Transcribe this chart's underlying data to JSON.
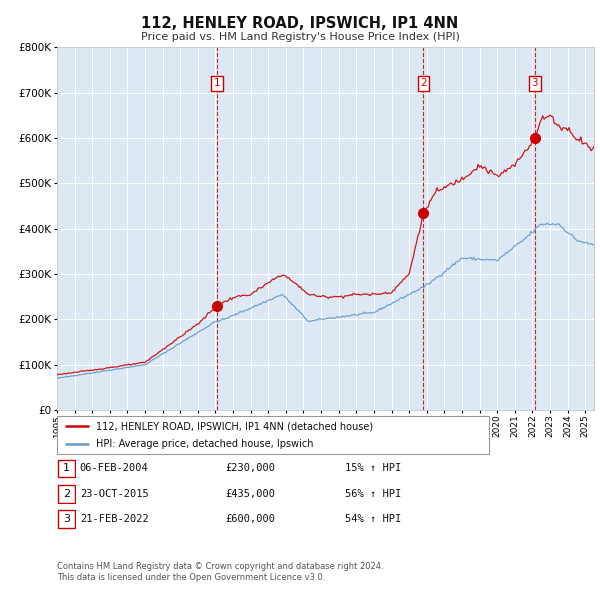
{
  "title": "112, HENLEY ROAD, IPSWICH, IP1 4NN",
  "subtitle": "Price paid vs. HM Land Registry's House Price Index (HPI)",
  "legend_line1": "112, HENLEY ROAD, IPSWICH, IP1 4NN (detached house)",
  "legend_line2": "HPI: Average price, detached house, Ipswich",
  "footer_line1": "Contains HM Land Registry data © Crown copyright and database right 2024.",
  "footer_line2": "This data is licensed under the Open Government Licence v3.0.",
  "transactions": [
    {
      "num": 1,
      "date": "06-FEB-2004",
      "price": 230000,
      "hpi_pct": "15%",
      "direction": "↑"
    },
    {
      "num": 2,
      "date": "23-OCT-2015",
      "price": 435000,
      "hpi_pct": "56%",
      "direction": "↑"
    },
    {
      "num": 3,
      "date": "21-FEB-2022",
      "price": 600000,
      "hpi_pct": "54%",
      "direction": "↑"
    }
  ],
  "transaction_dates_decimal": [
    2004.093,
    2015.812,
    2022.137
  ],
  "transaction_prices": [
    230000,
    435000,
    600000
  ],
  "ylim": [
    0,
    800000
  ],
  "yticks": [
    0,
    100000,
    200000,
    300000,
    400000,
    500000,
    600000,
    700000,
    800000
  ],
  "xlim_start": 1995.0,
  "xlim_end": 2025.5,
  "background_color": "#dce9f5",
  "red_line_color": "#cc0000",
  "blue_line_color": "#6699cc",
  "dot_color": "#cc0000",
  "dashed_line_color": "#cc0000",
  "grid_color": "#ffffff"
}
